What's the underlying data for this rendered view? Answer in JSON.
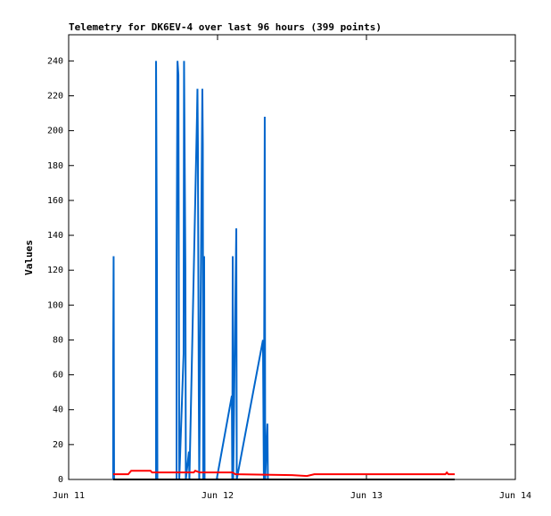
{
  "chart_data": {
    "type": "line",
    "title": "Telemetry for DK6EV-4 over last 96 hours (399 points)",
    "y_label": "Values",
    "xlim": [
      0,
      3
    ],
    "xticks": [
      {
        "value": 0,
        "label": "Jun 11"
      },
      {
        "value": 1,
        "label": "Jun 12"
      },
      {
        "value": 2,
        "label": "Jun 13"
      },
      {
        "value": 3,
        "label": "Jun 14"
      }
    ],
    "ylim": [
      0,
      255
    ],
    "yticks": [
      0,
      20,
      40,
      60,
      80,
      100,
      120,
      140,
      160,
      180,
      200,
      220,
      240
    ],
    "series": [
      {
        "color": "#000000",
        "x": [
          0.299,
          2.593
        ],
        "values": [
          0,
          0
        ]
      },
      {
        "color": "#ff0000",
        "x": [
          0.299,
          0.4,
          0.42,
          0.55,
          0.56,
          0.84,
          0.85,
          0.88,
          1.1,
          1.12,
          1.5,
          1.6,
          1.65,
          2.53,
          2.54,
          2.55,
          2.593
        ],
        "values": [
          3,
          3,
          5,
          5,
          4,
          4,
          5,
          4,
          4,
          3,
          2.5,
          2,
          3,
          3,
          4,
          3,
          3
        ]
      },
      {
        "color": "#0066cc",
        "x": [
          0.299,
          0.299,
          0.302,
          0.305,
          0.587,
          0.587,
          0.593,
          0.596,
          0.725,
          0.725,
          0.731,
          0.737,
          0.74,
          0.743,
          0.772,
          0.775,
          0.784,
          0.787,
          0.808,
          0.811,
          0.862,
          0.865,
          0.868,
          0.874,
          0.877,
          0.898,
          0.901,
          0.904,
          0.91,
          0.913,
          0.994,
          1.096,
          1.099,
          1.102,
          1.105,
          1.126,
          1.129,
          1.305,
          1.311,
          1.317,
          1.32,
          1.335,
          1.338,
          2.593
        ],
        "values": [
          0,
          64,
          128,
          0,
          0,
          240,
          120,
          0,
          0,
          120,
          240,
          232,
          112,
          0,
          72,
          240,
          120,
          0,
          16,
          0,
          208,
          224,
          192,
          48,
          0,
          224,
          192,
          0,
          128,
          0,
          0,
          48,
          0,
          128,
          0,
          144,
          0,
          80,
          0,
          208,
          0,
          32,
          0,
          0
        ]
      }
    ]
  }
}
